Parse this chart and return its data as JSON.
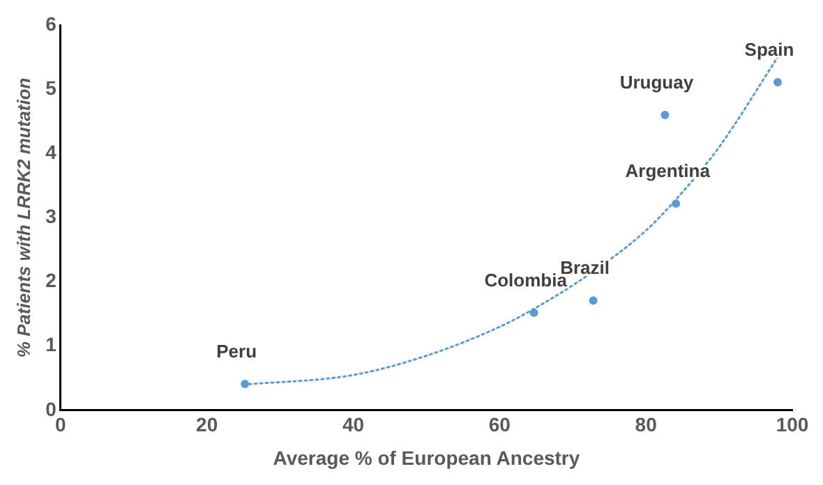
{
  "chart_data": {
    "type": "scatter",
    "xlabel": "Average % of European Ancestry",
    "ylabel": "% Patients with LRRK2 mutation",
    "xlim": [
      0,
      100
    ],
    "xticks": [
      0,
      20,
      40,
      60,
      80,
      100
    ],
    "ylim": [
      0,
      6
    ],
    "yticks": [
      0,
      1,
      2,
      3,
      4,
      5,
      6
    ],
    "grid": false,
    "legend": false,
    "marker": "circle",
    "series": [
      {
        "color": "#5b9bd5",
        "x": [
          25.2,
          64.7,
          72.8,
          82.6,
          84.1,
          98.0
        ],
        "values": [
          0.41,
          1.52,
          1.71,
          4.6,
          3.22,
          5.11
        ],
        "value_labels": [
          "Peru",
          "Colombia",
          "Brazil",
          "Uruguay",
          "Argentina",
          "Spain"
        ]
      },
      {
        "type": "line",
        "color": "#5b9bd5",
        "line_style": "dotted",
        "marker": "none",
        "x": [
          25,
          40,
          50,
          60,
          65,
          72,
          80,
          85,
          90,
          98
        ],
        "values": [
          0.4,
          0.55,
          0.85,
          1.3,
          1.6,
          2.1,
          2.8,
          3.4,
          4.1,
          5.5
        ]
      }
    ]
  }
}
